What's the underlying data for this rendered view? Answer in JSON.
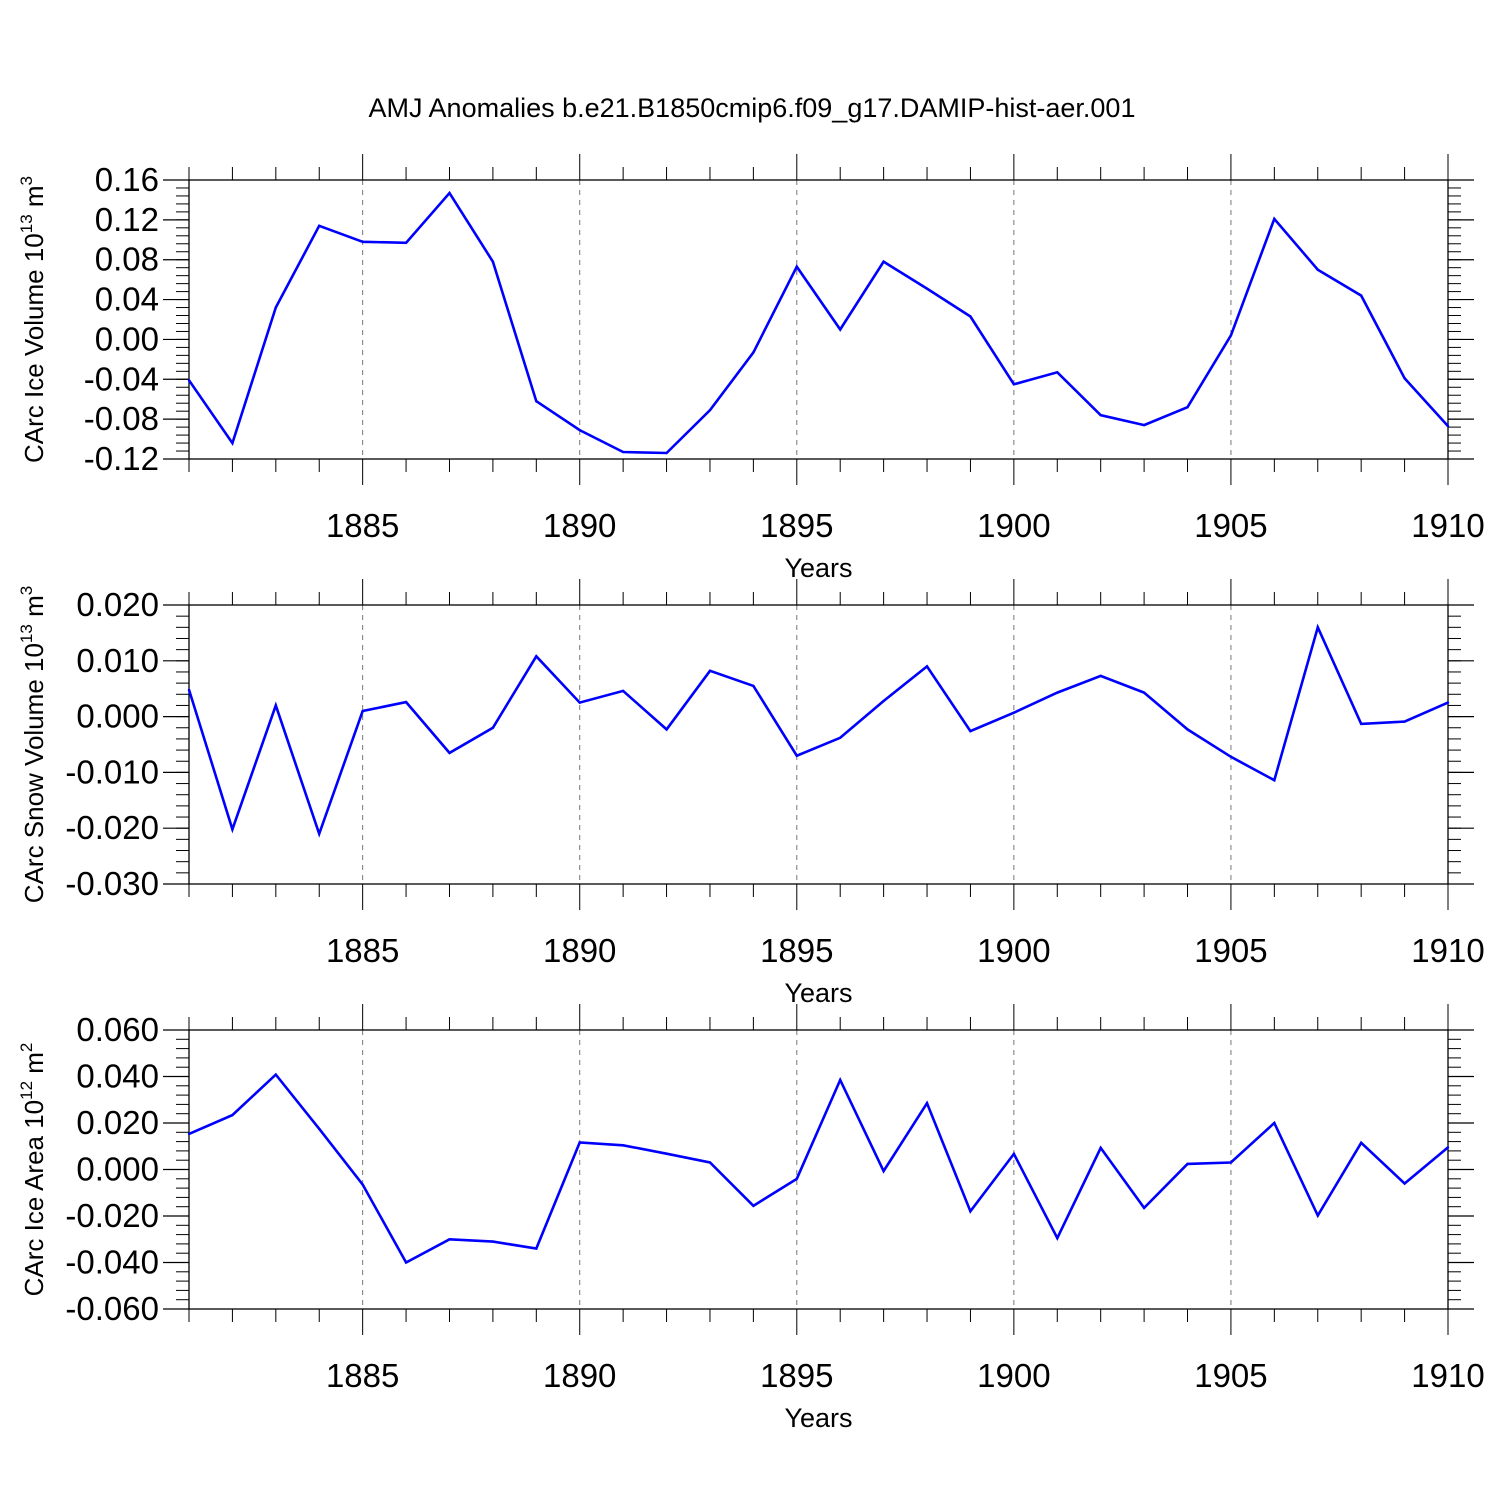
{
  "chart_data": [
    {
      "type": "line",
      "title": "AMJ Anomalies b.e21.B1850cmip6.f09_g17.DAMIP-hist-aer.001",
      "ylabel": {
        "base": "CArc Ice Volume 10",
        "exponent": "13",
        "unit": " m",
        "unit_exponent": "3"
      },
      "xlabel": "Years",
      "xlim": [
        1881,
        1910
      ],
      "ylim": [
        -0.12,
        0.16
      ],
      "yticks": [
        -0.12,
        -0.08,
        -0.04,
        0.0,
        0.04,
        0.08,
        0.12,
        0.16
      ],
      "ytick_labels": [
        "-0.12",
        "-0.08",
        "-0.04",
        "0.00",
        "0.04",
        "0.08",
        "0.12",
        "0.16"
      ],
      "yminor_step": 0.008,
      "xticks": [
        1885,
        1890,
        1895,
        1900,
        1905,
        1910
      ],
      "xtick_labels": [
        "1885",
        "1890",
        "1895",
        "1900",
        "1905",
        "1910"
      ],
      "line_color": "#0000ff",
      "x": [
        1881,
        1882,
        1883,
        1884,
        1885,
        1886,
        1887,
        1888,
        1889,
        1890,
        1891,
        1892,
        1893,
        1894,
        1895,
        1896,
        1897,
        1898,
        1899,
        1900,
        1901,
        1902,
        1903,
        1904,
        1905,
        1906,
        1907,
        1908,
        1909,
        1910
      ],
      "values": [
        -0.041,
        -0.104,
        0.032,
        0.114,
        0.098,
        0.097,
        0.147,
        0.078,
        -0.062,
        -0.091,
        -0.113,
        -0.114,
        -0.071,
        -0.013,
        0.073,
        0.01,
        0.078,
        0.051,
        0.023,
        -0.045,
        -0.033,
        -0.076,
        -0.086,
        -0.068,
        0.004,
        0.121,
        0.07,
        0.044,
        -0.039,
        -0.087
      ]
    },
    {
      "type": "line",
      "ylabel": {
        "base": "CArc Snow Volume 10",
        "exponent": "13",
        "unit": " m",
        "unit_exponent": "3"
      },
      "xlabel": "Years",
      "xlim": [
        1881,
        1910
      ],
      "ylim": [
        -0.03,
        0.02
      ],
      "yticks": [
        -0.03,
        -0.02,
        -0.01,
        0.0,
        0.01,
        0.02
      ],
      "ytick_labels": [
        "-0.030",
        "-0.020",
        "-0.010",
        "0.000",
        "0.010",
        "0.020"
      ],
      "yminor_step": 0.002,
      "xticks": [
        1885,
        1890,
        1895,
        1900,
        1905,
        1910
      ],
      "xtick_labels": [
        "1885",
        "1890",
        "1895",
        "1900",
        "1905",
        "1910"
      ],
      "line_color": "#0000ff",
      "x": [
        1881,
        1882,
        1883,
        1884,
        1885,
        1886,
        1887,
        1888,
        1889,
        1890,
        1891,
        1892,
        1893,
        1894,
        1895,
        1896,
        1897,
        1898,
        1899,
        1900,
        1901,
        1902,
        1903,
        1904,
        1905,
        1906,
        1907,
        1908,
        1909,
        1910
      ],
      "values": [
        0.0048,
        -0.0202,
        0.002,
        -0.021,
        0.001,
        0.0026,
        -0.0065,
        -0.002,
        0.0108,
        0.0025,
        0.0046,
        -0.0023,
        0.0082,
        0.0055,
        -0.007,
        -0.0038,
        0.0028,
        0.009,
        -0.0026,
        0.0007,
        0.0043,
        0.0073,
        0.0043,
        -0.0023,
        -0.0072,
        -0.0114,
        0.016,
        -0.0013,
        -0.0009,
        0.0025
      ]
    },
    {
      "type": "line",
      "ylabel": {
        "base": "CArc Ice Area 10",
        "exponent": "12",
        "unit": " m",
        "unit_exponent": "2"
      },
      "xlabel": "Years",
      "xlim": [
        1881,
        1910
      ],
      "ylim": [
        -0.06,
        0.06
      ],
      "yticks": [
        -0.06,
        -0.04,
        -0.02,
        0.0,
        0.02,
        0.04,
        0.06
      ],
      "ytick_labels": [
        "-0.060",
        "-0.040",
        "-0.020",
        "0.000",
        "0.020",
        "0.040",
        "0.060"
      ],
      "yminor_step": 0.004,
      "xticks": [
        1885,
        1890,
        1895,
        1900,
        1905,
        1910
      ],
      "xtick_labels": [
        "1885",
        "1890",
        "1895",
        "1900",
        "1905",
        "1910"
      ],
      "line_color": "#0000ff",
      "x": [
        1881,
        1882,
        1883,
        1884,
        1885,
        1886,
        1887,
        1888,
        1889,
        1890,
        1891,
        1892,
        1893,
        1894,
        1895,
        1896,
        1897,
        1898,
        1899,
        1900,
        1901,
        1902,
        1903,
        1904,
        1905,
        1906,
        1907,
        1908,
        1909,
        1910
      ],
      "values": [
        0.0153,
        0.0234,
        0.0408,
        0.0175,
        -0.0065,
        -0.04,
        -0.03,
        -0.031,
        -0.034,
        0.0116,
        0.0104,
        0.0068,
        0.003,
        -0.0156,
        -0.004,
        0.0385,
        -0.0007,
        0.0285,
        -0.018,
        0.0067,
        -0.0295,
        0.0093,
        -0.0165,
        0.0024,
        0.003,
        0.02,
        -0.0198,
        0.0115,
        -0.006,
        0.0095
      ]
    }
  ]
}
